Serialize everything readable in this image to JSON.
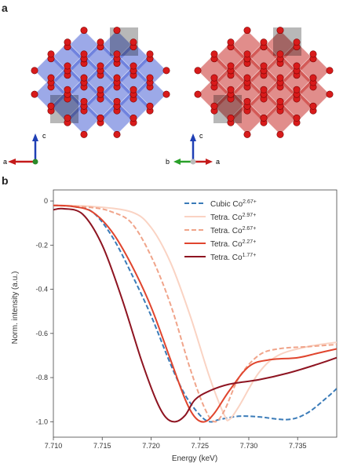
{
  "panel_a": {
    "label": "a",
    "left_axes": {
      "vertical": "c",
      "horizontal": "a"
    },
    "right_axes": {
      "vertical": "c",
      "left": "b",
      "right": "a"
    },
    "colors": {
      "cubic": "#4a63d6",
      "tetra": "#c9302c",
      "oxygen": "#d81b1b"
    }
  },
  "panel_b": {
    "label": "b",
    "chart_data": {
      "type": "line",
      "xlabel": "Energy (keV)",
      "ylabel": "Norm. intensity (a.u.)",
      "xlim": [
        7.71,
        7.739
      ],
      "ylim": [
        -1.07,
        0.05
      ],
      "xticks": [
        "7.710",
        "7.715",
        "7.720",
        "7.725",
        "7.730",
        "7.735"
      ],
      "yticks": [
        "0",
        "-0.2",
        "-0.4",
        "-0.6",
        "-0.8",
        "-1.0"
      ],
      "legend_position": "top-right",
      "series": [
        {
          "name": "Cubic Co",
          "sup": "2.67+",
          "color": "#3a7bb8",
          "dash": true,
          "points": [
            [
              7.71,
              -0.02
            ],
            [
              7.712,
              -0.025
            ],
            [
              7.714,
              -0.05
            ],
            [
              7.716,
              -0.16
            ],
            [
              7.718,
              -0.33
            ],
            [
              7.72,
              -0.52
            ],
            [
              7.722,
              -0.74
            ],
            [
              7.7235,
              -0.88
            ],
            [
              7.725,
              -0.97
            ],
            [
              7.726,
              -1.0
            ],
            [
              7.727,
              -0.99
            ],
            [
              7.729,
              -0.975
            ],
            [
              7.731,
              -0.978
            ],
            [
              7.734,
              -0.99
            ],
            [
              7.736,
              -0.96
            ],
            [
              7.738,
              -0.89
            ],
            [
              7.739,
              -0.85
            ]
          ]
        },
        {
          "name": "Tetra. Co",
          "sup": "2.97+",
          "color": "#fad3c3",
          "dash": false,
          "points": [
            [
              7.71,
              -0.02
            ],
            [
              7.714,
              -0.025
            ],
            [
              7.718,
              -0.05
            ],
            [
              7.72,
              -0.12
            ],
            [
              7.722,
              -0.28
            ],
            [
              7.724,
              -0.52
            ],
            [
              7.726,
              -0.8
            ],
            [
              7.7275,
              -0.97
            ],
            [
              7.728,
              -0.99
            ],
            [
              7.729,
              -0.93
            ],
            [
              7.731,
              -0.78
            ],
            [
              7.733,
              -0.7
            ],
            [
              7.736,
              -0.66
            ],
            [
              7.739,
              -0.64
            ]
          ]
        },
        {
          "name": "Tetra. Co",
          "sup": "2.67+",
          "color": "#f0a48a",
          "dash": true,
          "points": [
            [
              7.71,
              -0.02
            ],
            [
              7.714,
              -0.03
            ],
            [
              7.716,
              -0.05
            ],
            [
              7.718,
              -0.1
            ],
            [
              7.72,
              -0.25
            ],
            [
              7.722,
              -0.47
            ],
            [
              7.724,
              -0.76
            ],
            [
              7.7255,
              -0.94
            ],
            [
              7.7265,
              -1.0
            ],
            [
              7.7275,
              -0.95
            ],
            [
              7.729,
              -0.8
            ],
            [
              7.731,
              -0.7
            ],
            [
              7.733,
              -0.67
            ],
            [
              7.736,
              -0.66
            ],
            [
              7.739,
              -0.65
            ]
          ]
        },
        {
          "name": "Tetra. Co",
          "sup": "2.27+",
          "color": "#e0452e",
          "dash": false,
          "points": [
            [
              7.71,
              -0.02
            ],
            [
              7.712,
              -0.025
            ],
            [
              7.714,
              -0.05
            ],
            [
              7.716,
              -0.14
            ],
            [
              7.718,
              -0.29
            ],
            [
              7.72,
              -0.48
            ],
            [
              7.722,
              -0.72
            ],
            [
              7.7235,
              -0.9
            ],
            [
              7.7245,
              -0.98
            ],
            [
              7.7255,
              -1.0
            ],
            [
              7.7265,
              -0.96
            ],
            [
              7.728,
              -0.86
            ],
            [
              7.73,
              -0.75
            ],
            [
              7.732,
              -0.72
            ],
            [
              7.735,
              -0.71
            ],
            [
              7.737,
              -0.69
            ],
            [
              7.739,
              -0.67
            ]
          ]
        },
        {
          "name": "Tetra. Co",
          "sup": "1.77+",
          "color": "#8e1421",
          "dash": false,
          "points": [
            [
              7.71,
              -0.04
            ],
            [
              7.711,
              -0.035
            ],
            [
              7.713,
              -0.06
            ],
            [
              7.715,
              -0.2
            ],
            [
              7.717,
              -0.44
            ],
            [
              7.719,
              -0.72
            ],
            [
              7.7205,
              -0.9
            ],
            [
              7.7215,
              -0.98
            ],
            [
              7.7225,
              -1.0
            ],
            [
              7.7235,
              -0.97
            ],
            [
              7.7245,
              -0.9
            ],
            [
              7.726,
              -0.86
            ],
            [
              7.728,
              -0.83
            ],
            [
              7.731,
              -0.81
            ],
            [
              7.734,
              -0.78
            ],
            [
              7.737,
              -0.74
            ],
            [
              7.739,
              -0.71
            ]
          ]
        }
      ]
    }
  }
}
